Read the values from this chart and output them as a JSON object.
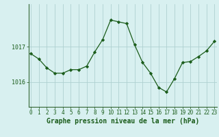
{
  "x": [
    0,
    1,
    2,
    3,
    4,
    5,
    6,
    7,
    8,
    9,
    10,
    11,
    12,
    13,
    14,
    15,
    16,
    17,
    18,
    19,
    20,
    21,
    22,
    23
  ],
  "y": [
    1016.8,
    1016.65,
    1016.4,
    1016.25,
    1016.25,
    1016.35,
    1016.35,
    1016.45,
    1016.85,
    1017.2,
    1017.75,
    1017.7,
    1017.65,
    1017.05,
    1016.55,
    1016.25,
    1015.85,
    1015.72,
    1016.1,
    1016.55,
    1016.58,
    1016.72,
    1016.88,
    1017.15
  ],
  "line_color": "#1a5c1a",
  "marker_color": "#1a5c1a",
  "bg_color": "#d8f0f0",
  "grid_color": "#afd0d0",
  "axis_color": "#336633",
  "tick_label_color": "#1a5c1a",
  "title": "Graphe pression niveau de la mer (hPa)",
  "title_color": "#1a5c1a",
  "ytick_labels": [
    "1016",
    "1017"
  ],
  "ytick_vals": [
    1016.0,
    1017.0
  ],
  "ylim": [
    1015.3,
    1018.2
  ],
  "xlim": [
    -0.3,
    23.3
  ],
  "title_fontsize": 7.0,
  "tick_fontsize": 6.0,
  "xtick_fontsize": 5.5
}
